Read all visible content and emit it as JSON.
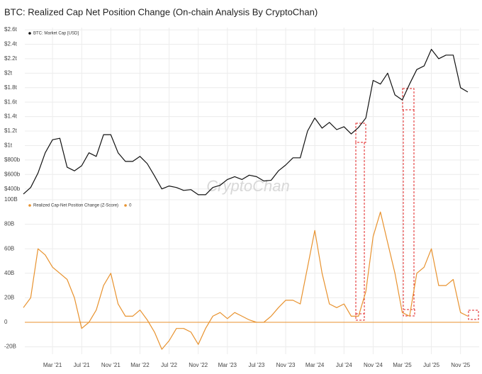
{
  "chart_data": [
    {
      "type": "line",
      "title": "BTC: Realized Cap Net Position Change (On-chain Analysis By CryptoChan)",
      "watermark": "CryptoChan",
      "x": [
        "2020-11",
        "2020-12",
        "2021-01",
        "2021-02",
        "2021-03",
        "2021-04",
        "2021-05",
        "2021-06",
        "2021-07",
        "2021-08",
        "2021-09",
        "2021-10",
        "2021-11",
        "2021-12",
        "2022-01",
        "2022-02",
        "2022-03",
        "2022-04",
        "2022-05",
        "2022-06",
        "2022-07",
        "2022-08",
        "2022-09",
        "2022-10",
        "2022-11",
        "2022-12",
        "2023-01",
        "2023-02",
        "2023-03",
        "2023-04",
        "2023-05",
        "2023-06",
        "2023-07",
        "2023-08",
        "2023-09",
        "2023-10",
        "2023-11",
        "2023-12",
        "2024-01",
        "2024-02",
        "2024-03",
        "2024-04",
        "2024-05",
        "2024-06",
        "2024-07",
        "2024-08",
        "2024-09",
        "2024-10",
        "2024-11",
        "2024-12",
        "2025-01",
        "2025-02",
        "2025-03",
        "2025-04",
        "2025-05",
        "2025-06",
        "2025-07",
        "2025-08",
        "2025-09",
        "2025-10",
        "2025-11",
        "2025-12"
      ],
      "xlim": [
        "2020-11",
        "2025-12"
      ],
      "series": [
        {
          "name": "BTC: Market Cap [USD]",
          "color": "#111111",
          "values": [
            330,
            420,
            620,
            900,
            1080,
            1100,
            700,
            650,
            720,
            900,
            850,
            1150,
            1150,
            900,
            780,
            780,
            850,
            750,
            580,
            400,
            440,
            420,
            380,
            390,
            320,
            320,
            420,
            450,
            530,
            570,
            530,
            590,
            570,
            510,
            520,
            650,
            730,
            830,
            830,
            1200,
            1380,
            1240,
            1320,
            1220,
            1260,
            1160,
            1250,
            1380,
            1900,
            1850,
            2000,
            1700,
            1630,
            1850,
            2050,
            2100,
            2330,
            2200,
            2250,
            2250,
            1800,
            1740
          ]
        }
      ],
      "ylim": [
        270,
        2630
      ],
      "yticks": [
        {
          "value": 400,
          "label": "$400b"
        },
        {
          "value": 600,
          "label": "$600b"
        },
        {
          "value": 800,
          "label": "$800b"
        },
        {
          "value": 1000,
          "label": "$1t"
        },
        {
          "value": 1200,
          "label": "$1.2t"
        },
        {
          "value": 1400,
          "label": "$1.4t"
        },
        {
          "value": 1600,
          "label": "$1.6t"
        },
        {
          "value": 1800,
          "label": "$1.8t"
        },
        {
          "value": 2000,
          "label": "$2t"
        },
        {
          "value": 2200,
          "label": "$2.2t"
        },
        {
          "value": 2400,
          "label": "$2.4t"
        },
        {
          "value": 2600,
          "label": "$2.6t"
        }
      ],
      "grid": true
    },
    {
      "type": "line",
      "x": [
        "2020-11",
        "2020-12",
        "2021-01",
        "2021-02",
        "2021-03",
        "2021-04",
        "2021-05",
        "2021-06",
        "2021-07",
        "2021-08",
        "2021-09",
        "2021-10",
        "2021-11",
        "2021-12",
        "2022-01",
        "2022-02",
        "2022-03",
        "2022-04",
        "2022-05",
        "2022-06",
        "2022-07",
        "2022-08",
        "2022-09",
        "2022-10",
        "2022-11",
        "2022-12",
        "2023-01",
        "2023-02",
        "2023-03",
        "2023-04",
        "2023-05",
        "2023-06",
        "2023-07",
        "2023-08",
        "2023-09",
        "2023-10",
        "2023-11",
        "2023-12",
        "2024-01",
        "2024-02",
        "2024-03",
        "2024-04",
        "2024-05",
        "2024-06",
        "2024-07",
        "2024-08",
        "2024-09",
        "2024-10",
        "2024-11",
        "2024-12",
        "2025-01",
        "2025-02",
        "2025-03",
        "2025-04",
        "2025-05",
        "2025-06",
        "2025-07",
        "2025-08",
        "2025-09",
        "2025-10",
        "2025-11",
        "2025-12"
      ],
      "xlim": [
        "2020-11",
        "2025-12"
      ],
      "xticks": [
        {
          "value": "2021-03",
          "label": "Mar '21"
        },
        {
          "value": "2021-07",
          "label": "Jul '21"
        },
        {
          "value": "2021-11",
          "label": "Nov '21"
        },
        {
          "value": "2022-03",
          "label": "Mar '22"
        },
        {
          "value": "2022-07",
          "label": "Jul '22"
        },
        {
          "value": "2022-11",
          "label": "Nov '22"
        },
        {
          "value": "2023-03",
          "label": "Mar '23"
        },
        {
          "value": "2023-07",
          "label": "Jul '23"
        },
        {
          "value": "2023-11",
          "label": "Nov '23"
        },
        {
          "value": "2024-03",
          "label": "Mar '24"
        },
        {
          "value": "2024-07",
          "label": "Jul '24"
        },
        {
          "value": "2024-11",
          "label": "Nov '24"
        },
        {
          "value": "2025-03",
          "label": "Mar '25"
        },
        {
          "value": "2025-07",
          "label": "Jul '25"
        },
        {
          "value": "2025-11",
          "label": "Nov '25"
        }
      ],
      "series": [
        {
          "name": "Realized Cap-Net Position Change (Z-Score)",
          "color": "#e8922e",
          "values": [
            12,
            20,
            60,
            55,
            45,
            40,
            35,
            20,
            -5,
            0,
            10,
            30,
            40,
            15,
            5,
            5,
            10,
            2,
            -8,
            -22,
            -15,
            -5,
            -5,
            -8,
            -18,
            -5,
            5,
            8,
            3,
            8,
            5,
            2,
            0,
            0,
            5,
            12,
            18,
            18,
            15,
            45,
            75,
            40,
            15,
            12,
            15,
            5,
            5,
            25,
            70,
            90,
            65,
            40,
            8,
            5,
            40,
            45,
            60,
            30,
            30,
            35,
            8,
            5
          ]
        }
      ],
      "hline": {
        "name": "0",
        "value": 0,
        "color": "#e8922e"
      },
      "ylim": [
        -26,
        100
      ],
      "yticks": [
        {
          "value": -20,
          "label": "-20B"
        },
        0,
        {
          "value": 20,
          "label": "20B"
        },
        {
          "value": 40,
          "label": "40B"
        },
        {
          "value": 60,
          "label": "60B"
        },
        {
          "value": 80,
          "label": "80B"
        },
        {
          "value": 100,
          "label": "100B"
        }
      ],
      "grid": true
    }
  ]
}
